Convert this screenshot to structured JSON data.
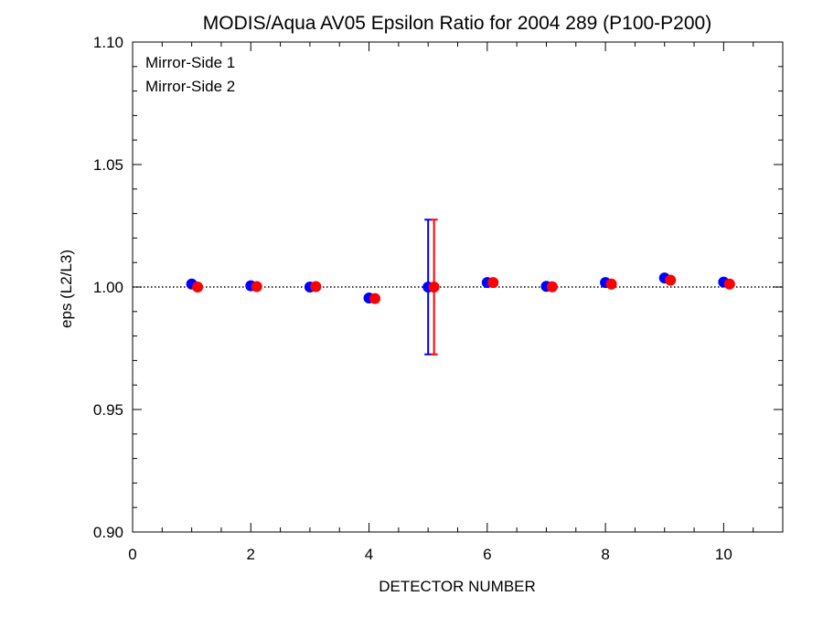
{
  "chart_data": {
    "type": "scatter",
    "title": "MODIS/Aqua AV05 Epsilon Ratio for 2004 289 (P100-P200)",
    "xlabel": "DETECTOR NUMBER",
    "ylabel": "eps (L2/L3)",
    "xlim": [
      0,
      11
    ],
    "ylim": [
      0.9,
      1.1
    ],
    "x_ticks": [
      0,
      2,
      4,
      6,
      8,
      10
    ],
    "x_tick_labels": [
      "0",
      "2",
      "4",
      "6",
      "8",
      "10"
    ],
    "y_ticks": [
      0.9,
      0.95,
      1.0,
      1.05,
      1.1
    ],
    "y_tick_labels": [
      "0.90",
      "0.95",
      "1.00",
      "1.05",
      "1.10"
    ],
    "reference_line": 1.0,
    "legend_position": "top-left",
    "series": [
      {
        "name": "Mirror-Side 1",
        "color": "#0000ff",
        "x": [
          1,
          2,
          3,
          4,
          5,
          6,
          7,
          8,
          9,
          10
        ],
        "y": [
          1.0012,
          1.0005,
          1.0,
          0.9955,
          1.0,
          1.0018,
          1.0003,
          1.0018,
          1.0037,
          1.002
        ],
        "error_bars": [
          {
            "x": 5,
            "low": 0.9725,
            "high": 1.0275
          }
        ]
      },
      {
        "name": "Mirror-Side 2",
        "color": "#ff0000",
        "x": [
          1.1,
          2.1,
          3.1,
          4.1,
          5.1,
          6.1,
          7.1,
          8.1,
          9.1,
          10.1
        ],
        "y": [
          1.0,
          1.0002,
          1.0002,
          0.9953,
          1.0,
          1.0018,
          1.0001,
          1.0012,
          1.0028,
          1.0012
        ],
        "error_bars": [
          {
            "x": 5.1,
            "low": 0.9725,
            "high": 1.0275
          }
        ]
      }
    ]
  }
}
